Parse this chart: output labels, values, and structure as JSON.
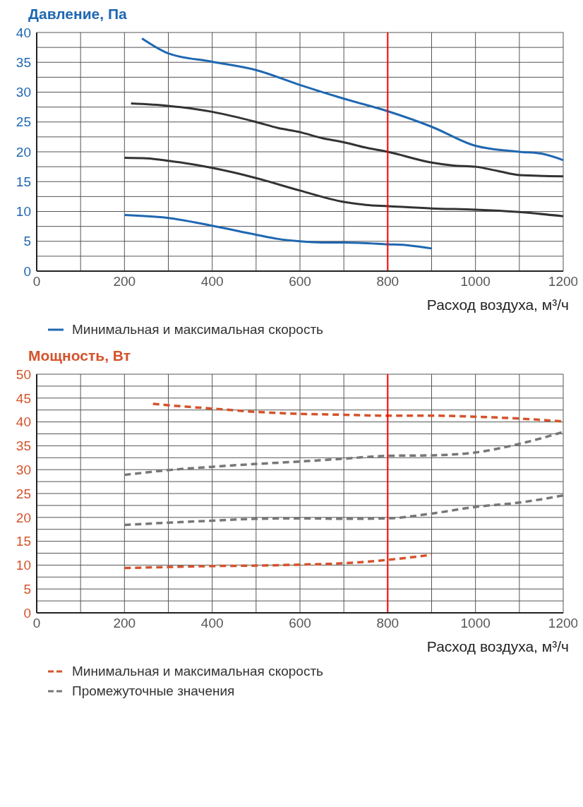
{
  "chart_data": [
    {
      "type": "line",
      "ylabel": "Давление, Па",
      "xlabel": "Расход воздуха, м³/ч",
      "xlim": [
        0,
        1200
      ],
      "ylim": [
        0,
        40
      ],
      "xticks": [
        0,
        {
          "value": 100,
          "label": null
        },
        200,
        {
          "value": 300,
          "label": null
        },
        400,
        {
          "value": 500,
          "label": null
        },
        600,
        {
          "value": 700,
          "label": null
        },
        800,
        {
          "value": 900,
          "label": null
        },
        1000,
        {
          "value": 1100,
          "label": null
        },
        1200
      ],
      "yticks": [
        0,
        {
          "value": 2.5,
          "label": null
        },
        5,
        {
          "value": 7.5,
          "label": null
        },
        10,
        {
          "value": 12.5,
          "label": null
        },
        15,
        {
          "value": 17.5,
          "label": null
        },
        20,
        {
          "value": 22.5,
          "label": null
        },
        25,
        {
          "value": 27.5,
          "label": null
        },
        30,
        {
          "value": 32.5,
          "label": null
        },
        35,
        {
          "value": 37.5,
          "label": null
        },
        40
      ],
      "grid": true,
      "legend": "bottom",
      "series": [
        {
          "name": "Минимальная и максимальная скорость",
          "color": "#1f67b1",
          "line_style": "solid",
          "x": [
            240,
            300,
            400,
            500,
            600,
            700,
            800,
            900,
            1000,
            1100,
            1150,
            1200
          ],
          "values": [
            39,
            36.5,
            35.1,
            33.7,
            31.2,
            28.9,
            26.8,
            24.2,
            21,
            20,
            19.7,
            18.6
          ]
        },
        {
          "color": "#333333",
          "line_style": "solid",
          "x": [
            215,
            300,
            400,
            500,
            550,
            600,
            650,
            700,
            750,
            800,
            900,
            950,
            1000,
            1050,
            1100,
            1200
          ],
          "values": [
            28.1,
            27.7,
            26.7,
            25,
            24,
            23.3,
            22.3,
            21.6,
            20.7,
            20,
            18.2,
            17.7,
            17.5,
            16.8,
            16.1,
            15.9
          ]
        },
        {
          "color": "#333333",
          "line_style": "solid",
          "x": [
            200,
            250,
            300,
            400,
            500,
            600,
            700,
            750,
            800,
            900,
            1000,
            1100,
            1200
          ],
          "values": [
            19,
            18.9,
            18.5,
            17.3,
            15.6,
            13.5,
            11.6,
            11.1,
            10.9,
            10.5,
            10.3,
            9.9,
            9.2
          ]
        },
        {
          "color": "#1f67b1",
          "line_style": "solid",
          "x": [
            200,
            300,
            400,
            500,
            550,
            600,
            650,
            700,
            800,
            850,
            900
          ],
          "values": [
            9.4,
            8.9,
            7.6,
            6.1,
            5.4,
            5,
            4.8,
            4.8,
            4.5,
            4.3,
            3.8
          ]
        }
      ],
      "ref_lines": [
        {
          "axis": "x",
          "value": 800,
          "color": "#ff0000"
        }
      ]
    },
    {
      "type": "line",
      "ylabel": "Мощность, Вт",
      "xlabel": "Расход воздуха, м³/ч",
      "xlim": [
        0,
        1200
      ],
      "ylim": [
        0,
        50
      ],
      "xticks": [
        0,
        {
          "value": 100,
          "label": null
        },
        200,
        {
          "value": 300,
          "label": null
        },
        400,
        {
          "value": 500,
          "label": null
        },
        600,
        {
          "value": 700,
          "label": null
        },
        800,
        {
          "value": 900,
          "label": null
        },
        1000,
        {
          "value": 1100,
          "label": null
        },
        1200
      ],
      "yticks": [
        0,
        {
          "value": 2.5,
          "label": null
        },
        5,
        {
          "value": 7.5,
          "label": null
        },
        10,
        {
          "value": 12.5,
          "label": null
        },
        15,
        {
          "value": 17.5,
          "label": null
        },
        20,
        {
          "value": 22.5,
          "label": null
        },
        25,
        {
          "value": 27.5,
          "label": null
        },
        30,
        {
          "value": 32.5,
          "label": null
        },
        35,
        {
          "value": 37.5,
          "label": null
        },
        40,
        {
          "value": 42.5,
          "label": null
        },
        45,
        {
          "value": 47.5,
          "label": null
        },
        50
      ],
      "grid": true,
      "legend": "bottom",
      "series": [
        {
          "name": "Минимальная и максимальная скорость",
          "color": "#d4532b",
          "line_style": "dashed",
          "x": [
            265,
            300,
            400,
            500,
            600,
            700,
            800,
            900,
            1000,
            1100,
            1200
          ],
          "values": [
            43.8,
            43.5,
            42.8,
            42.1,
            41.7,
            41.5,
            41.3,
            41.3,
            41.1,
            40.7,
            40.1
          ]
        },
        {
          "name": "Промежуточные значения",
          "color": "#777777",
          "line_style": "dashed",
          "x": [
            200,
            300,
            400,
            500,
            600,
            700,
            800,
            900,
            1000,
            1100,
            1200
          ],
          "values": [
            28.9,
            29.9,
            30.6,
            31.2,
            31.7,
            32.3,
            32.9,
            33,
            33.6,
            35.4,
            37.9
          ]
        },
        {
          "color": "#777777",
          "line_style": "dashed",
          "x": [
            200,
            300,
            400,
            500,
            600,
            700,
            800,
            900,
            1000,
            1100,
            1200
          ],
          "values": [
            18.4,
            18.9,
            19.3,
            19.7,
            19.8,
            19.7,
            19.8,
            20.8,
            22.2,
            23.1,
            24.6
          ]
        },
        {
          "color": "#d4532b",
          "line_style": "dashed",
          "x": [
            200,
            300,
            400,
            500,
            600,
            700,
            800,
            850,
            900
          ],
          "values": [
            9.4,
            9.6,
            9.8,
            9.9,
            10.1,
            10.4,
            11.1,
            11.6,
            12.2
          ]
        }
      ],
      "ref_lines": [
        {
          "axis": "x",
          "value": 800,
          "color": "#ff0000"
        }
      ]
    }
  ]
}
